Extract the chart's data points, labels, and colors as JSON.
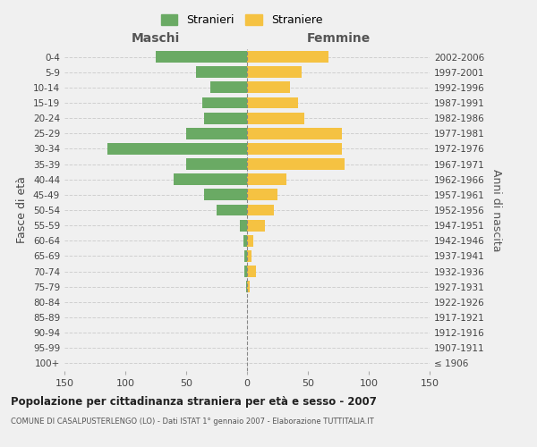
{
  "age_groups": [
    "100+",
    "95-99",
    "90-94",
    "85-89",
    "80-84",
    "75-79",
    "70-74",
    "65-69",
    "60-64",
    "55-59",
    "50-54",
    "45-49",
    "40-44",
    "35-39",
    "30-34",
    "25-29",
    "20-24",
    "15-19",
    "10-14",
    "5-9",
    "0-4"
  ],
  "birth_years": [
    "≤ 1906",
    "1907-1911",
    "1912-1916",
    "1917-1921",
    "1922-1926",
    "1927-1931",
    "1932-1936",
    "1937-1941",
    "1942-1946",
    "1947-1951",
    "1952-1956",
    "1957-1961",
    "1962-1966",
    "1967-1971",
    "1972-1976",
    "1977-1981",
    "1982-1986",
    "1987-1991",
    "1992-1996",
    "1997-2001",
    "2002-2006"
  ],
  "males": [
    0,
    0,
    0,
    0,
    0,
    1,
    2,
    2,
    3,
    6,
    25,
    35,
    60,
    50,
    115,
    50,
    35,
    37,
    30,
    42,
    75
  ],
  "females": [
    0,
    0,
    0,
    0,
    0,
    2,
    7,
    4,
    5,
    15,
    22,
    25,
    32,
    80,
    78,
    78,
    47,
    42,
    35,
    45,
    67
  ],
  "male_color": "#6aaa64",
  "female_color": "#f5c242",
  "bg_color": "#f0f0f0",
  "grid_color": "#cccccc",
  "bar_height": 0.75,
  "xlim": 150,
  "title": "Popolazione per cittadinanza straniera per età e sesso - 2007",
  "subtitle": "COMUNE DI CASALPUSTERLENGO (LO) - Dati ISTAT 1° gennaio 2007 - Elaborazione TUTTITALIA.IT",
  "left_label": "Maschi",
  "right_label": "Femmine",
  "left_axis_label": "Fasce di età",
  "right_axis_label": "Anni di nascita",
  "legend_male": "Stranieri",
  "legend_female": "Straniere"
}
